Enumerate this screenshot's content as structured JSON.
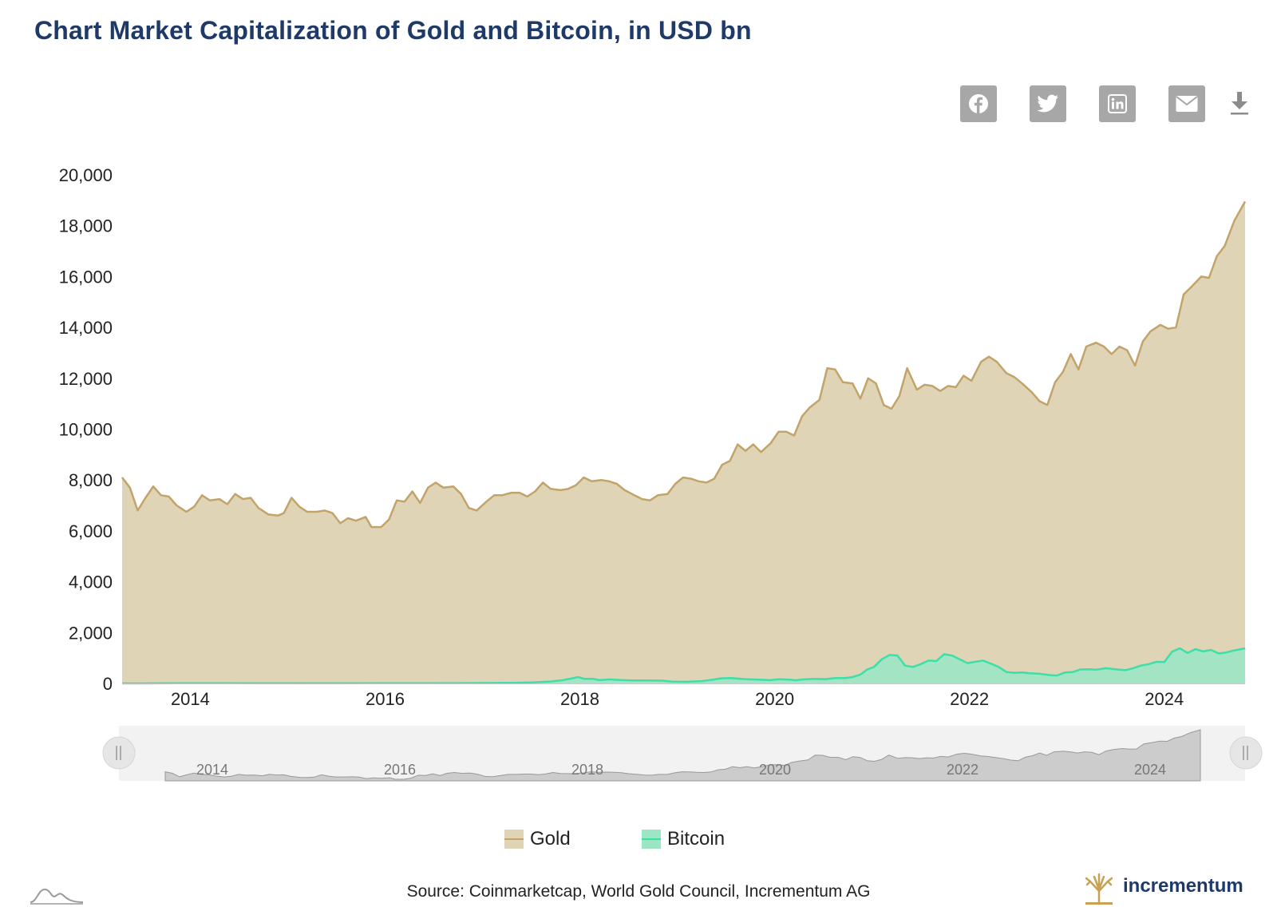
{
  "title": "Chart Market Capitalization of Gold and Bitcoin, in USD bn",
  "toolbar": {
    "icons": [
      "facebook-icon",
      "twitter-icon",
      "linkedin-icon",
      "email-icon",
      "download-icon"
    ]
  },
  "colors": {
    "gold_line": "#c2a46a",
    "gold_fill": "#e0d4b6",
    "bitcoin_line": "#3ddfa8",
    "bitcoin_fill": "#9be6c5",
    "title": "#1f3a68",
    "button": "#a7a7a7",
    "navigator_bg": "#f2f2f2",
    "navigator_fill": "#cccccc"
  },
  "navigator": {
    "labels": [
      "2014",
      "2016",
      "2018",
      "2020",
      "2022",
      "2024"
    ]
  },
  "legend": {
    "gold": "Gold",
    "bitcoin": "Bitcoin"
  },
  "source": "Source: Coinmarketcap, World Gold Council, Incrementum AG",
  "brand": "incrementum",
  "chart_data": {
    "type": "area",
    "x_range": [
      2013.3,
      2024.83
    ],
    "ylim": [
      0,
      20000
    ],
    "yticks": [
      0,
      2000,
      4000,
      6000,
      8000,
      10000,
      12000,
      14000,
      16000,
      18000,
      20000
    ],
    "xticks": [
      2014,
      2016,
      2018,
      2020,
      2022,
      2024
    ],
    "grid": false,
    "legend_position": "bottom-center",
    "series": [
      {
        "name": "Gold",
        "points": [
          [
            2013.3,
            8100
          ],
          [
            2013.38,
            7700
          ],
          [
            2013.46,
            6800
          ],
          [
            2013.54,
            7300
          ],
          [
            2013.62,
            7750
          ],
          [
            2013.7,
            7400
          ],
          [
            2013.78,
            7350
          ],
          [
            2013.86,
            7000
          ],
          [
            2013.96,
            6750
          ],
          [
            2014.04,
            6950
          ],
          [
            2014.12,
            7400
          ],
          [
            2014.2,
            7200
          ],
          [
            2014.3,
            7250
          ],
          [
            2014.38,
            7050
          ],
          [
            2014.46,
            7450
          ],
          [
            2014.54,
            7250
          ],
          [
            2014.62,
            7300
          ],
          [
            2014.7,
            6900
          ],
          [
            2014.8,
            6650
          ],
          [
            2014.9,
            6600
          ],
          [
            2014.96,
            6700
          ],
          [
            2015.04,
            7300
          ],
          [
            2015.12,
            6950
          ],
          [
            2015.2,
            6750
          ],
          [
            2015.3,
            6750
          ],
          [
            2015.38,
            6800
          ],
          [
            2015.46,
            6700
          ],
          [
            2015.54,
            6300
          ],
          [
            2015.62,
            6500
          ],
          [
            2015.7,
            6400
          ],
          [
            2015.8,
            6550
          ],
          [
            2015.86,
            6150
          ],
          [
            2015.96,
            6150
          ],
          [
            2016.04,
            6450
          ],
          [
            2016.12,
            7200
          ],
          [
            2016.2,
            7150
          ],
          [
            2016.28,
            7550
          ],
          [
            2016.36,
            7100
          ],
          [
            2016.44,
            7700
          ],
          [
            2016.52,
            7900
          ],
          [
            2016.6,
            7700
          ],
          [
            2016.7,
            7750
          ],
          [
            2016.78,
            7450
          ],
          [
            2016.86,
            6900
          ],
          [
            2016.94,
            6800
          ],
          [
            2017.04,
            7150
          ],
          [
            2017.12,
            7400
          ],
          [
            2017.2,
            7400
          ],
          [
            2017.3,
            7500
          ],
          [
            2017.38,
            7500
          ],
          [
            2017.46,
            7350
          ],
          [
            2017.54,
            7550
          ],
          [
            2017.62,
            7900
          ],
          [
            2017.7,
            7650
          ],
          [
            2017.8,
            7600
          ],
          [
            2017.88,
            7650
          ],
          [
            2017.96,
            7800
          ],
          [
            2018.04,
            8100
          ],
          [
            2018.12,
            7950
          ],
          [
            2018.22,
            8000
          ],
          [
            2018.3,
            7950
          ],
          [
            2018.38,
            7850
          ],
          [
            2018.46,
            7600
          ],
          [
            2018.56,
            7400
          ],
          [
            2018.64,
            7250
          ],
          [
            2018.72,
            7200
          ],
          [
            2018.8,
            7400
          ],
          [
            2018.9,
            7450
          ],
          [
            2018.98,
            7850
          ],
          [
            2019.06,
            8100
          ],
          [
            2019.14,
            8050
          ],
          [
            2019.22,
            7950
          ],
          [
            2019.3,
            7900
          ],
          [
            2019.38,
            8050
          ],
          [
            2019.46,
            8600
          ],
          [
            2019.54,
            8750
          ],
          [
            2019.62,
            9400
          ],
          [
            2019.7,
            9150
          ],
          [
            2019.78,
            9400
          ],
          [
            2019.86,
            9100
          ],
          [
            2019.96,
            9450
          ],
          [
            2020.04,
            9900
          ],
          [
            2020.12,
            9900
          ],
          [
            2020.2,
            9750
          ],
          [
            2020.28,
            10500
          ],
          [
            2020.36,
            10850
          ],
          [
            2020.46,
            11150
          ],
          [
            2020.54,
            12400
          ],
          [
            2020.62,
            12350
          ],
          [
            2020.7,
            11850
          ],
          [
            2020.8,
            11800
          ],
          [
            2020.88,
            11200
          ],
          [
            2020.96,
            12000
          ],
          [
            2021.04,
            11800
          ],
          [
            2021.12,
            10950
          ],
          [
            2021.2,
            10800
          ],
          [
            2021.28,
            11300
          ],
          [
            2021.36,
            12400
          ],
          [
            2021.46,
            11550
          ],
          [
            2021.54,
            11750
          ],
          [
            2021.62,
            11700
          ],
          [
            2021.7,
            11500
          ],
          [
            2021.78,
            11700
          ],
          [
            2021.86,
            11650
          ],
          [
            2021.94,
            12100
          ],
          [
            2022.02,
            11900
          ],
          [
            2022.12,
            12650
          ],
          [
            2022.2,
            12850
          ],
          [
            2022.28,
            12650
          ],
          [
            2022.38,
            12200
          ],
          [
            2022.46,
            12050
          ],
          [
            2022.54,
            11800
          ],
          [
            2022.64,
            11450
          ],
          [
            2022.72,
            11100
          ],
          [
            2022.8,
            10950
          ],
          [
            2022.88,
            11850
          ],
          [
            2022.96,
            12250
          ],
          [
            2023.04,
            12950
          ],
          [
            2023.12,
            12350
          ],
          [
            2023.2,
            13250
          ],
          [
            2023.3,
            13400
          ],
          [
            2023.38,
            13250
          ],
          [
            2023.46,
            12950
          ],
          [
            2023.54,
            13250
          ],
          [
            2023.62,
            13100
          ],
          [
            2023.7,
            12500
          ],
          [
            2023.78,
            13450
          ],
          [
            2023.86,
            13850
          ],
          [
            2023.96,
            14100
          ],
          [
            2024.04,
            13950
          ],
          [
            2024.12,
            14000
          ],
          [
            2024.2,
            15300
          ],
          [
            2024.28,
            15600
          ],
          [
            2024.38,
            16000
          ],
          [
            2024.46,
            15950
          ],
          [
            2024.54,
            16800
          ],
          [
            2024.62,
            17200
          ],
          [
            2024.72,
            18200
          ],
          [
            2024.83,
            18950
          ]
        ]
      },
      {
        "name": "Bitcoin",
        "points": [
          [
            2013.3,
            1
          ],
          [
            2013.5,
            1
          ],
          [
            2013.9,
            10
          ],
          [
            2014.3,
            5
          ],
          [
            2015.0,
            4
          ],
          [
            2016.0,
            6
          ],
          [
            2016.5,
            10
          ],
          [
            2017.0,
            17
          ],
          [
            2017.3,
            25
          ],
          [
            2017.5,
            40
          ],
          [
            2017.7,
            75
          ],
          [
            2017.83,
            135
          ],
          [
            2017.92,
            200
          ],
          [
            2017.98,
            250
          ],
          [
            2018.05,
            180
          ],
          [
            2018.13,
            185
          ],
          [
            2018.2,
            130
          ],
          [
            2018.3,
            160
          ],
          [
            2018.42,
            135
          ],
          [
            2018.55,
            115
          ],
          [
            2018.7,
            120
          ],
          [
            2018.85,
            110
          ],
          [
            2018.95,
            70
          ],
          [
            2019.1,
            65
          ],
          [
            2019.25,
            90
          ],
          [
            2019.35,
            140
          ],
          [
            2019.45,
            200
          ],
          [
            2019.55,
            210
          ],
          [
            2019.7,
            170
          ],
          [
            2019.85,
            150
          ],
          [
            2019.95,
            130
          ],
          [
            2020.05,
            170
          ],
          [
            2020.15,
            150
          ],
          [
            2020.22,
            125
          ],
          [
            2020.3,
            160
          ],
          [
            2020.4,
            180
          ],
          [
            2020.52,
            170
          ],
          [
            2020.62,
            210
          ],
          [
            2020.72,
            210
          ],
          [
            2020.8,
            250
          ],
          [
            2020.88,
            350
          ],
          [
            2020.95,
            550
          ],
          [
            2021.02,
            650
          ],
          [
            2021.1,
            950
          ],
          [
            2021.18,
            1120
          ],
          [
            2021.26,
            1100
          ],
          [
            2021.34,
            700
          ],
          [
            2021.42,
            650
          ],
          [
            2021.5,
            760
          ],
          [
            2021.58,
            900
          ],
          [
            2021.66,
            880
          ],
          [
            2021.74,
            1150
          ],
          [
            2021.82,
            1100
          ],
          [
            2021.9,
            950
          ],
          [
            2021.98,
            800
          ],
          [
            2022.06,
            850
          ],
          [
            2022.14,
            900
          ],
          [
            2022.22,
            780
          ],
          [
            2022.3,
            650
          ],
          [
            2022.38,
            450
          ],
          [
            2022.46,
            420
          ],
          [
            2022.54,
            430
          ],
          [
            2022.62,
            400
          ],
          [
            2022.72,
            380
          ],
          [
            2022.82,
            330
          ],
          [
            2022.9,
            310
          ],
          [
            2022.98,
            430
          ],
          [
            2023.06,
            450
          ],
          [
            2023.14,
            550
          ],
          [
            2023.22,
            560
          ],
          [
            2023.3,
            540
          ],
          [
            2023.4,
            600
          ],
          [
            2023.5,
            560
          ],
          [
            2023.6,
            520
          ],
          [
            2023.68,
            600
          ],
          [
            2023.76,
            700
          ],
          [
            2023.84,
            760
          ],
          [
            2023.92,
            850
          ],
          [
            2024.0,
            840
          ],
          [
            2024.08,
            1250
          ],
          [
            2024.16,
            1380
          ],
          [
            2024.24,
            1200
          ],
          [
            2024.32,
            1350
          ],
          [
            2024.4,
            1260
          ],
          [
            2024.48,
            1320
          ],
          [
            2024.56,
            1180
          ],
          [
            2024.64,
            1220
          ],
          [
            2024.72,
            1300
          ],
          [
            2024.83,
            1380
          ]
        ]
      }
    ]
  }
}
